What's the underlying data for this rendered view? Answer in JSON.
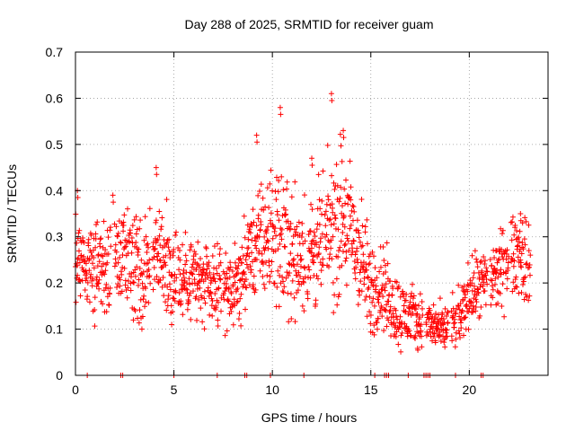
{
  "chart_data": {
    "type": "scatter",
    "title": "Day 288 of 2025, SRMTID for receiver guam",
    "xlabel": "GPS time / hours",
    "ylabel": "SRMTID / TECUs",
    "xlim": [
      0,
      24
    ],
    "ylim": [
      0,
      0.7
    ],
    "xticks": [
      0,
      5,
      10,
      15,
      20
    ],
    "yticks": [
      0,
      0.1,
      0.2,
      0.3,
      0.4,
      0.5,
      0.6,
      0.7
    ],
    "xtick_labels": [
      "0",
      "5",
      "10",
      "15",
      "20"
    ],
    "ytick_labels": [
      "0",
      "0.1",
      "0.2",
      "0.3",
      "0.4",
      "0.5",
      "0.6",
      "0.7"
    ],
    "grid": true,
    "marker": "+",
    "series_color": "#ff0000",
    "trend": [
      {
        "x": 0.0,
        "y": 0.26
      },
      {
        "x": 0.5,
        "y": 0.24
      },
      {
        "x": 1.0,
        "y": 0.23
      },
      {
        "x": 1.5,
        "y": 0.22
      },
      {
        "x": 2.0,
        "y": 0.25
      },
      {
        "x": 2.5,
        "y": 0.26
      },
      {
        "x": 3.0,
        "y": 0.24
      },
      {
        "x": 3.5,
        "y": 0.21
      },
      {
        "x": 4.0,
        "y": 0.27
      },
      {
        "x": 4.5,
        "y": 0.25
      },
      {
        "x": 5.0,
        "y": 0.22
      },
      {
        "x": 5.5,
        "y": 0.21
      },
      {
        "x": 6.0,
        "y": 0.22
      },
      {
        "x": 6.5,
        "y": 0.19
      },
      {
        "x": 7.0,
        "y": 0.18
      },
      {
        "x": 7.5,
        "y": 0.19
      },
      {
        "x": 8.0,
        "y": 0.18
      },
      {
        "x": 8.5,
        "y": 0.22
      },
      {
        "x": 9.0,
        "y": 0.27
      },
      {
        "x": 9.5,
        "y": 0.29
      },
      {
        "x": 10.0,
        "y": 0.3
      },
      {
        "x": 10.5,
        "y": 0.29
      },
      {
        "x": 11.0,
        "y": 0.27
      },
      {
        "x": 11.5,
        "y": 0.26
      },
      {
        "x": 12.0,
        "y": 0.27
      },
      {
        "x": 12.5,
        "y": 0.28
      },
      {
        "x": 13.0,
        "y": 0.31
      },
      {
        "x": 13.5,
        "y": 0.34
      },
      {
        "x": 14.0,
        "y": 0.31
      },
      {
        "x": 14.5,
        "y": 0.25
      },
      {
        "x": 15.0,
        "y": 0.18
      },
      {
        "x": 15.5,
        "y": 0.2
      },
      {
        "x": 16.0,
        "y": 0.16
      },
      {
        "x": 16.5,
        "y": 0.13
      },
      {
        "x": 17.0,
        "y": 0.13
      },
      {
        "x": 17.5,
        "y": 0.12
      },
      {
        "x": 18.0,
        "y": 0.11
      },
      {
        "x": 18.5,
        "y": 0.1
      },
      {
        "x": 19.0,
        "y": 0.1
      },
      {
        "x": 19.5,
        "y": 0.12
      },
      {
        "x": 20.0,
        "y": 0.18
      },
      {
        "x": 20.5,
        "y": 0.19
      },
      {
        "x": 21.0,
        "y": 0.2
      },
      {
        "x": 21.5,
        "y": 0.22
      },
      {
        "x": 22.0,
        "y": 0.25
      },
      {
        "x": 22.5,
        "y": 0.27
      },
      {
        "x": 23.0,
        "y": 0.23
      }
    ],
    "spread": [
      {
        "x": 0.0,
        "y": 0.06
      },
      {
        "x": 2.0,
        "y": 0.07
      },
      {
        "x": 4.0,
        "y": 0.08
      },
      {
        "x": 6.0,
        "y": 0.06
      },
      {
        "x": 8.0,
        "y": 0.05
      },
      {
        "x": 9.5,
        "y": 0.08
      },
      {
        "x": 10.5,
        "y": 0.1
      },
      {
        "x": 12.0,
        "y": 0.08
      },
      {
        "x": 13.5,
        "y": 0.11
      },
      {
        "x": 15.0,
        "y": 0.07
      },
      {
        "x": 16.5,
        "y": 0.05
      },
      {
        "x": 18.0,
        "y": 0.03
      },
      {
        "x": 19.5,
        "y": 0.04
      },
      {
        "x": 21.0,
        "y": 0.05
      },
      {
        "x": 23.0,
        "y": 0.06
      }
    ],
    "x_end": 23.1,
    "point_step_hours": 0.014,
    "noted_peaks": [
      {
        "x": 0.1,
        "y": 0.4
      },
      {
        "x": 1.9,
        "y": 0.39
      },
      {
        "x": 4.1,
        "y": 0.45
      },
      {
        "x": 9.2,
        "y": 0.52
      },
      {
        "x": 10.4,
        "y": 0.58
      },
      {
        "x": 12.0,
        "y": 0.47
      },
      {
        "x": 13.0,
        "y": 0.61
      },
      {
        "x": 13.6,
        "y": 0.53
      },
      {
        "x": 22.6,
        "y": 0.35
      }
    ],
    "zero_ticks_x": [
      0.6,
      2.3,
      2.4,
      5.0,
      7.2,
      8.6,
      8.7,
      9.9,
      11.6,
      15.2,
      15.7,
      15.8,
      15.9,
      16.9,
      17.7,
      17.8,
      17.9,
      18.0,
      19.3,
      20.6,
      20.7
    ]
  }
}
